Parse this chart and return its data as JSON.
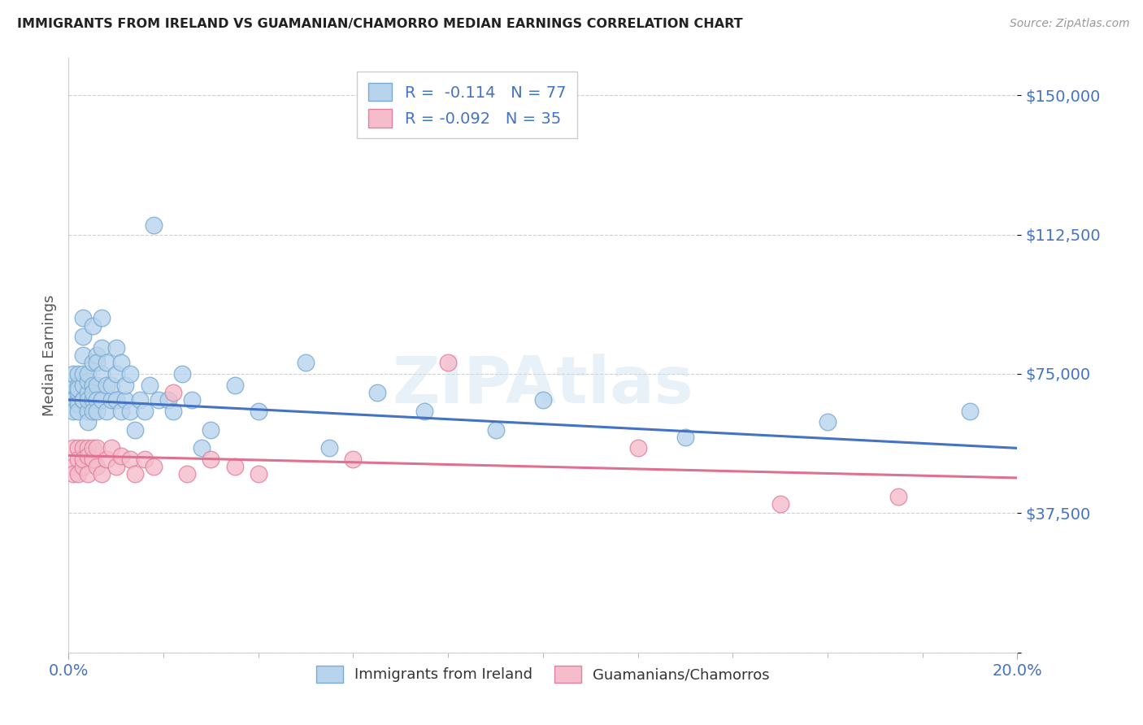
{
  "title": "IMMIGRANTS FROM IRELAND VS GUAMANIAN/CHAMORRO MEDIAN EARNINGS CORRELATION CHART",
  "source": "Source: ZipAtlas.com",
  "ylabel": "Median Earnings",
  "yticks": [
    0,
    37500,
    75000,
    112500,
    150000
  ],
  "ytick_labels": [
    "",
    "$37,500",
    "$75,000",
    "$112,500",
    "$150,000"
  ],
  "xmin": 0.0,
  "xmax": 0.2,
  "ymin": 0,
  "ymax": 160000,
  "series1_label": "Immigrants from Ireland",
  "series1_color": "#b8d4ed",
  "series1_edge_color": "#7aaad0",
  "series1_line_color": "#4472c4",
  "series1_R": "-0.114",
  "series1_N": "77",
  "series2_label": "Guamanians/Chamorros",
  "series2_color": "#f5bccb",
  "series2_edge_color": "#e080a0",
  "series2_line_color": "#e07090",
  "series2_R": "-0.092",
  "series2_N": "35",
  "legend_R_color": "#4472c4",
  "title_color": "#222222",
  "axis_color": "#4472c4",
  "grid_color": "#d0d0d0",
  "background_color": "#ffffff",
  "series1_x": [
    0.001,
    0.001,
    0.001,
    0.001,
    0.001,
    0.002,
    0.002,
    0.002,
    0.002,
    0.002,
    0.002,
    0.002,
    0.003,
    0.003,
    0.003,
    0.003,
    0.003,
    0.003,
    0.003,
    0.004,
    0.004,
    0.004,
    0.004,
    0.004,
    0.004,
    0.005,
    0.005,
    0.005,
    0.005,
    0.005,
    0.005,
    0.006,
    0.006,
    0.006,
    0.006,
    0.006,
    0.007,
    0.007,
    0.007,
    0.007,
    0.008,
    0.008,
    0.008,
    0.009,
    0.009,
    0.01,
    0.01,
    0.01,
    0.011,
    0.011,
    0.012,
    0.012,
    0.013,
    0.013,
    0.014,
    0.015,
    0.016,
    0.017,
    0.018,
    0.019,
    0.021,
    0.022,
    0.024,
    0.026,
    0.028,
    0.03,
    0.035,
    0.04,
    0.05,
    0.055,
    0.065,
    0.075,
    0.09,
    0.1,
    0.13,
    0.16,
    0.19
  ],
  "series1_y": [
    70000,
    68000,
    72000,
    65000,
    75000,
    68000,
    72000,
    70000,
    67000,
    75000,
    65000,
    71000,
    80000,
    68000,
    85000,
    90000,
    72000,
    68000,
    75000,
    65000,
    70000,
    73000,
    68000,
    75000,
    62000,
    72000,
    78000,
    68000,
    88000,
    70000,
    65000,
    80000,
    78000,
    72000,
    68000,
    65000,
    82000,
    90000,
    68000,
    75000,
    72000,
    65000,
    78000,
    68000,
    72000,
    75000,
    82000,
    68000,
    78000,
    65000,
    68000,
    72000,
    75000,
    65000,
    60000,
    68000,
    65000,
    72000,
    115000,
    68000,
    68000,
    65000,
    75000,
    68000,
    55000,
    60000,
    72000,
    65000,
    78000,
    55000,
    70000,
    65000,
    60000,
    68000,
    58000,
    62000,
    65000
  ],
  "series2_x": [
    0.001,
    0.001,
    0.001,
    0.002,
    0.002,
    0.002,
    0.003,
    0.003,
    0.003,
    0.004,
    0.004,
    0.004,
    0.005,
    0.005,
    0.006,
    0.006,
    0.007,
    0.008,
    0.009,
    0.01,
    0.011,
    0.013,
    0.014,
    0.016,
    0.018,
    0.022,
    0.025,
    0.03,
    0.035,
    0.04,
    0.06,
    0.08,
    0.12,
    0.15,
    0.175
  ],
  "series2_y": [
    55000,
    50000,
    48000,
    55000,
    52000,
    48000,
    55000,
    50000,
    52000,
    55000,
    48000,
    53000,
    52000,
    55000,
    50000,
    55000,
    48000,
    52000,
    55000,
    50000,
    53000,
    52000,
    48000,
    52000,
    50000,
    70000,
    48000,
    52000,
    50000,
    48000,
    52000,
    78000,
    55000,
    40000,
    42000
  ]
}
